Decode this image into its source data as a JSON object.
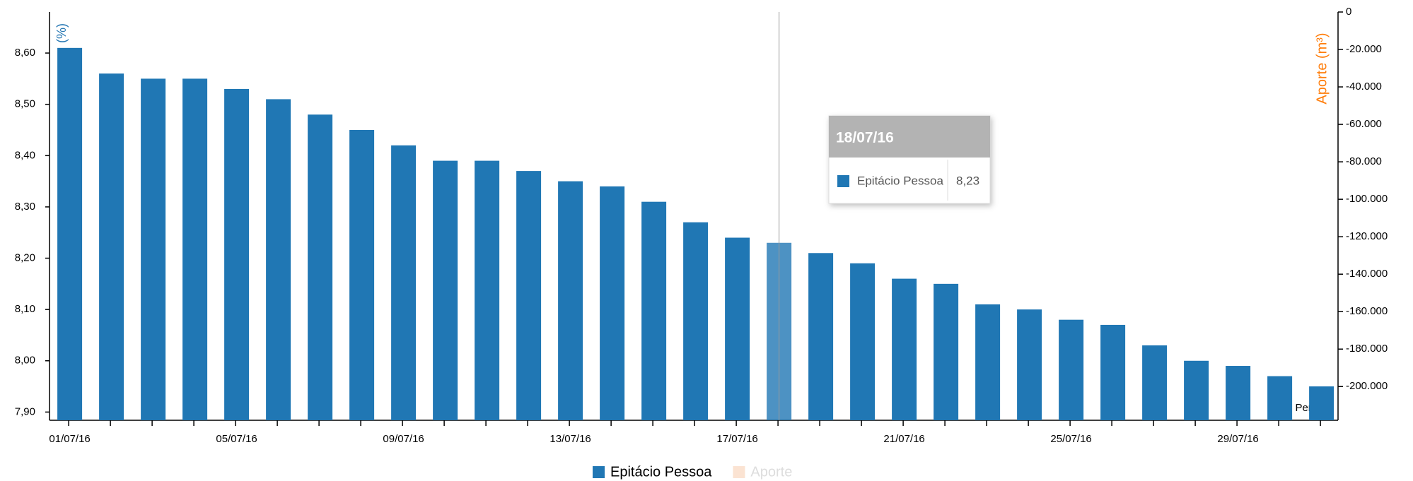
{
  "chart_data": {
    "type": "bar",
    "x_label": "Período",
    "y_label": "(%)",
    "y2_label": "Aporte (m³)",
    "categories": [
      "01/07/16",
      null,
      null,
      null,
      "05/07/16",
      null,
      null,
      null,
      "09/07/16",
      null,
      null,
      null,
      "13/07/16",
      null,
      null,
      null,
      "17/07/16",
      null,
      null,
      null,
      "21/07/16",
      null,
      null,
      null,
      "25/07/16",
      null,
      null,
      null,
      "29/07/16",
      null,
      null
    ],
    "series": [
      {
        "name": "Epitácio Pessoa",
        "color": "#2077b4",
        "values": [
          8.61,
          8.56,
          8.55,
          8.55,
          8.53,
          8.51,
          8.48,
          8.45,
          8.42,
          8.39,
          8.39,
          8.37,
          8.35,
          8.34,
          8.31,
          8.27,
          8.24,
          8.23,
          8.21,
          8.19,
          8.16,
          8.15,
          8.11,
          8.1,
          8.08,
          8.07,
          8.03,
          8.0,
          7.99,
          7.97,
          7.95
        ],
        "value_labels": [
          null,
          null,
          null,
          null,
          null,
          null,
          null,
          null,
          null,
          null,
          null,
          null,
          null,
          null,
          null,
          null,
          null,
          "8,23",
          null,
          null,
          null,
          null,
          null,
          null,
          null,
          null,
          null,
          null,
          null,
          null,
          null
        ]
      },
      {
        "name": "Aporte",
        "color": "#fbe3d2",
        "axis": "y2",
        "hidden": true
      }
    ],
    "tooltip": {
      "title": "18/07/16"
    },
    "ylim": [
      7.884,
      8.68
    ],
    "yticks": [
      {
        "value": 7.9,
        "label": "7,90"
      },
      {
        "value": 8.0,
        "label": "8,00"
      },
      {
        "value": 8.1,
        "label": "8,10"
      },
      {
        "value": 8.2,
        "label": "8,20"
      },
      {
        "value": 8.3,
        "label": "8,30"
      },
      {
        "value": 8.4,
        "label": "8,40"
      },
      {
        "value": 8.5,
        "label": "8,50"
      },
      {
        "value": 8.6,
        "label": "8,60"
      }
    ],
    "y2lim": [
      -218000,
      0
    ],
    "y2ticks": [
      0,
      {
        "value": -20000,
        "label": "-20.000"
      },
      {
        "value": -40000,
        "label": "-40.000"
      },
      {
        "value": -60000,
        "label": "-60.000"
      },
      {
        "value": -80000,
        "label": "-80.000"
      },
      {
        "value": -100000,
        "label": "-100.000"
      },
      {
        "value": -120000,
        "label": "-120.000"
      },
      {
        "value": -140000,
        "label": "-140.000"
      },
      {
        "value": -160000,
        "label": "-160.000"
      },
      {
        "value": -180000,
        "label": "-180.000"
      },
      {
        "value": -200000,
        "label": "-200.000"
      }
    ],
    "y2_color": "#ff7f0e",
    "grid": false
  }
}
